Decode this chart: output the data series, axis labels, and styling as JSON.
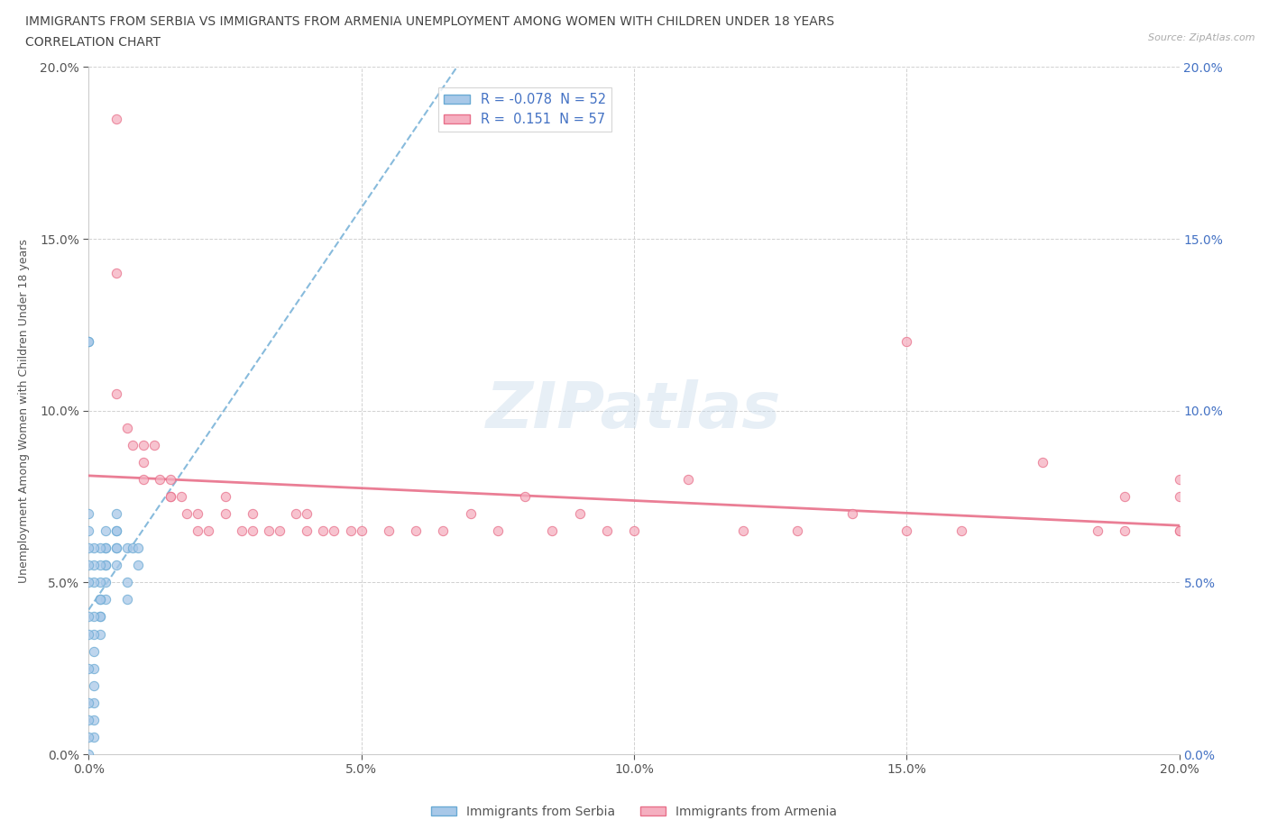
{
  "title_line1": "IMMIGRANTS FROM SERBIA VS IMMIGRANTS FROM ARMENIA UNEMPLOYMENT AMONG WOMEN WITH CHILDREN UNDER 18 YEARS",
  "title_line2": "CORRELATION CHART",
  "source_text": "Source: ZipAtlas.com",
  "ylabel": "Unemployment Among Women with Children Under 18 years",
  "xlim": [
    0.0,
    0.2
  ],
  "ylim": [
    0.0,
    0.2
  ],
  "tick_vals": [
    0.0,
    0.05,
    0.1,
    0.15,
    0.2
  ],
  "serbia_color": "#a8c8e8",
  "armenia_color": "#f5afc0",
  "serbia_edge_color": "#6aaad4",
  "armenia_edge_color": "#e8708a",
  "serbia_trend_color": "#6aaad4",
  "armenia_trend_color": "#e8708a",
  "serbia_R": -0.078,
  "serbia_N": 52,
  "armenia_R": 0.151,
  "armenia_N": 57,
  "watermark": "ZIPatlas",
  "serbia_x": [
    0.005,
    0.005,
    0.005,
    0.007,
    0.008,
    0.005,
    0.005,
    0.005,
    0.003,
    0.003,
    0.003,
    0.003,
    0.003,
    0.003,
    0.003,
    0.002,
    0.002,
    0.002,
    0.002,
    0.002,
    0.002,
    0.002,
    0.002,
    0.001,
    0.001,
    0.001,
    0.001,
    0.001,
    0.001,
    0.001,
    0.001,
    0.001,
    0.001,
    0.001,
    0.0,
    0.0,
    0.0,
    0.0,
    0.0,
    0.0,
    0.0,
    0.0,
    0.0,
    0.0,
    0.0,
    0.0,
    0.0,
    0.0,
    0.009,
    0.009,
    0.007,
    0.007
  ],
  "serbia_y": [
    0.065,
    0.07,
    0.065,
    0.06,
    0.06,
    0.06,
    0.055,
    0.06,
    0.06,
    0.065,
    0.06,
    0.055,
    0.055,
    0.05,
    0.045,
    0.06,
    0.055,
    0.05,
    0.045,
    0.04,
    0.035,
    0.04,
    0.045,
    0.06,
    0.055,
    0.05,
    0.04,
    0.035,
    0.03,
    0.025,
    0.02,
    0.015,
    0.01,
    0.005,
    0.06,
    0.055,
    0.05,
    0.04,
    0.035,
    0.025,
    0.015,
    0.01,
    0.005,
    0.0,
    0.065,
    0.07,
    0.12,
    0.12,
    0.06,
    0.055,
    0.05,
    0.045
  ],
  "armenia_x": [
    0.005,
    0.005,
    0.005,
    0.007,
    0.008,
    0.01,
    0.01,
    0.01,
    0.012,
    0.013,
    0.015,
    0.015,
    0.015,
    0.017,
    0.018,
    0.02,
    0.02,
    0.022,
    0.025,
    0.025,
    0.028,
    0.03,
    0.03,
    0.033,
    0.035,
    0.038,
    0.04,
    0.04,
    0.043,
    0.045,
    0.048,
    0.05,
    0.055,
    0.06,
    0.065,
    0.07,
    0.075,
    0.08,
    0.085,
    0.09,
    0.095,
    0.1,
    0.11,
    0.12,
    0.13,
    0.14,
    0.15,
    0.15,
    0.16,
    0.175,
    0.185,
    0.19,
    0.19,
    0.2,
    0.2,
    0.2,
    0.2
  ],
  "armenia_y": [
    0.185,
    0.14,
    0.105,
    0.095,
    0.09,
    0.09,
    0.085,
    0.08,
    0.09,
    0.08,
    0.075,
    0.08,
    0.075,
    0.075,
    0.07,
    0.065,
    0.07,
    0.065,
    0.075,
    0.07,
    0.065,
    0.065,
    0.07,
    0.065,
    0.065,
    0.07,
    0.065,
    0.07,
    0.065,
    0.065,
    0.065,
    0.065,
    0.065,
    0.065,
    0.065,
    0.07,
    0.065,
    0.075,
    0.065,
    0.07,
    0.065,
    0.065,
    0.08,
    0.065,
    0.065,
    0.07,
    0.065,
    0.12,
    0.065,
    0.085,
    0.065,
    0.065,
    0.075,
    0.065,
    0.075,
    0.065,
    0.08
  ]
}
